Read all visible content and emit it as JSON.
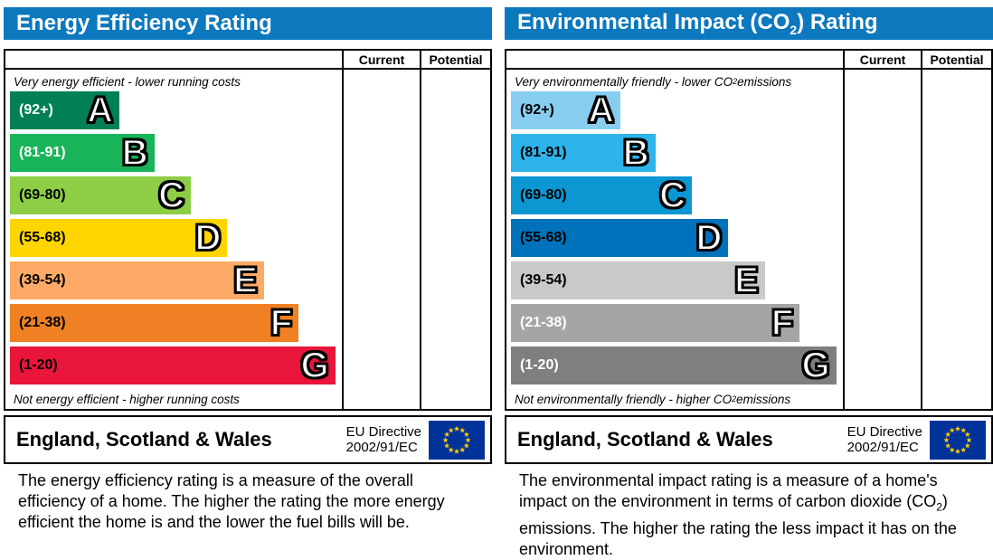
{
  "colors": {
    "header_bg": "#0c78be",
    "eu_flag_bg": "#003399",
    "eu_flag_star": "#ffcc00",
    "border": "#000000"
  },
  "left_panel": {
    "title": "Energy Efficiency Rating",
    "col_current": "Current",
    "col_potential": "Potential",
    "top_caption": "Very energy efficient - lower running costs",
    "bottom_caption": "Not energy efficient - higher running costs",
    "bands": [
      {
        "range": "(92+)",
        "letter": "A",
        "color": "#008054",
        "label_color": "#ffffff",
        "width_pct": 33
      },
      {
        "range": "(81-91)",
        "letter": "B",
        "color": "#19b459",
        "label_color": "#ffffff",
        "width_pct": 43.5
      },
      {
        "range": "(69-80)",
        "letter": "C",
        "color": "#8dce46",
        "label_color": "#000000",
        "width_pct": 54.5
      },
      {
        "range": "(55-68)",
        "letter": "D",
        "color": "#ffd500",
        "label_color": "#000000",
        "width_pct": 65.5
      },
      {
        "range": "(39-54)",
        "letter": "E",
        "color": "#fcaa65",
        "label_color": "#000000",
        "width_pct": 76.5
      },
      {
        "range": "(21-38)",
        "letter": "F",
        "color": "#ef8023",
        "label_color": "#000000",
        "width_pct": 87
      },
      {
        "range": "(1-20)",
        "letter": "G",
        "color": "#e9153b",
        "label_color": "#000000",
        "width_pct": 98
      }
    ],
    "footer": {
      "region": "England, Scotland & Wales",
      "directive_line1": "EU Directive",
      "directive_line2": "2002/91/EC"
    },
    "description": "The energy efficiency rating is a measure of the overall efficiency of a home. The higher the rating the more energy efficient the home is and the lower the fuel bills will be."
  },
  "right_panel": {
    "title_parts": {
      "prefix": "Environmental Impact (CO",
      "sub": "2",
      "suffix": ") Rating"
    },
    "col_current": "Current",
    "col_potential": "Potential",
    "top_caption_parts": {
      "prefix": "Very environmentally friendly - lower CO",
      "sub": "2",
      "suffix": " emissions"
    },
    "bottom_caption_parts": {
      "prefix": "Not environmentally friendly - higher CO",
      "sub": "2",
      "suffix": " emissions"
    },
    "bands": [
      {
        "range": "(92+)",
        "letter": "A",
        "color": "#87cdf0",
        "label_color": "#000000",
        "width_pct": 33
      },
      {
        "range": "(81-91)",
        "letter": "B",
        "color": "#2eb4ea",
        "label_color": "#000000",
        "width_pct": 43.5
      },
      {
        "range": "(69-80)",
        "letter": "C",
        "color": "#0c96d2",
        "label_color": "#000000",
        "width_pct": 54.5
      },
      {
        "range": "(55-68)",
        "letter": "D",
        "color": "#0072bc",
        "label_color": "#000000",
        "width_pct": 65.5
      },
      {
        "range": "(39-54)",
        "letter": "E",
        "color": "#c9c9c9",
        "label_color": "#000000",
        "width_pct": 76.5
      },
      {
        "range": "(21-38)",
        "letter": "F",
        "color": "#a5a5a5",
        "label_color": "#ffffff",
        "width_pct": 87
      },
      {
        "range": "(1-20)",
        "letter": "G",
        "color": "#7f7f7f",
        "label_color": "#ffffff",
        "width_pct": 98
      }
    ],
    "footer": {
      "region": "England, Scotland & Wales",
      "directive_line1": "EU Directive",
      "directive_line2": "2002/91/EC"
    },
    "description_parts": {
      "prefix": "The environmental impact rating is a measure of a home's impact on the environment in terms of carbon dioxide (CO",
      "sub": "2",
      "suffix": ") emissions. The higher the rating the less impact it has on the environment."
    }
  },
  "chart_data": [
    {
      "type": "bar",
      "title": "Energy Efficiency Rating",
      "orientation": "horizontal",
      "categories": [
        "A",
        "B",
        "C",
        "D",
        "E",
        "F",
        "G"
      ],
      "band_ranges": [
        "92+",
        "81-91",
        "69-80",
        "55-68",
        "39-54",
        "21-38",
        "1-20"
      ],
      "values": [
        33,
        43.5,
        54.5,
        65.5,
        76.5,
        87,
        98
      ],
      "value_note": "bar lengths are fixed design widths in % of chart column; no numeric ratings plotted",
      "columns": {
        "current": null,
        "potential": null
      },
      "top_caption": "Very energy efficient - lower running costs",
      "bottom_caption": "Not energy efficient - higher running costs"
    },
    {
      "type": "bar",
      "title": "Environmental Impact (CO2) Rating",
      "orientation": "horizontal",
      "categories": [
        "A",
        "B",
        "C",
        "D",
        "E",
        "F",
        "G"
      ],
      "band_ranges": [
        "92+",
        "81-91",
        "69-80",
        "55-68",
        "39-54",
        "21-38",
        "1-20"
      ],
      "values": [
        33,
        43.5,
        54.5,
        65.5,
        76.5,
        87,
        98
      ],
      "value_note": "bar lengths are fixed design widths in % of chart column; no numeric ratings plotted",
      "columns": {
        "current": null,
        "potential": null
      },
      "top_caption": "Very environmentally friendly - lower CO2 emissions",
      "bottom_caption": "Not environmentally friendly - higher CO2 emissions"
    }
  ]
}
